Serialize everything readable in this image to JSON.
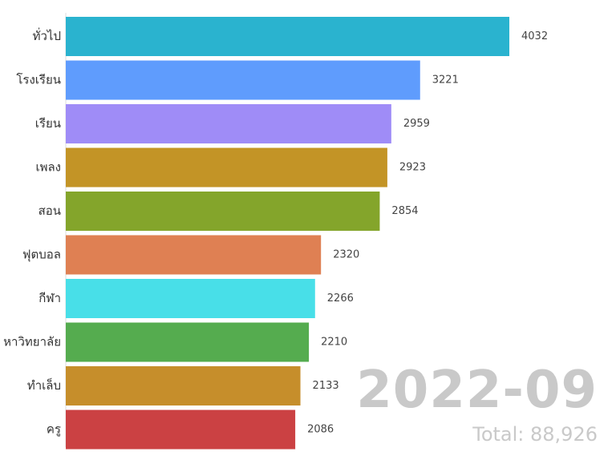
{
  "chart_data": {
    "type": "bar",
    "orientation": "horizontal",
    "title": "",
    "xlabel": "",
    "ylabel": "",
    "categories": [
      "ทั่วไป",
      "โรงเรียน",
      "เรียน",
      "เพลง",
      "สอน",
      "ฟุตบอล",
      "กีฬา",
      "หาวิทยาลัย",
      "ทำเล็บ",
      "ครู"
    ],
    "values": [
      4032,
      3221,
      2959,
      2923,
      2854,
      2320,
      2266,
      2210,
      2133,
      2086
    ],
    "colors": [
      "#2ab3cf",
      "#5f9cfd",
      "#9f8cf7",
      "#c39426",
      "#84a52b",
      "#df8053",
      "#48dfe8",
      "#55ac4f",
      "#c68e2b",
      "#cb4143"
    ],
    "xlim": [
      0,
      4032
    ],
    "grid": false,
    "legend": "none"
  },
  "overlay": {
    "period": "2022-09",
    "total": "Total: 88,926"
  }
}
